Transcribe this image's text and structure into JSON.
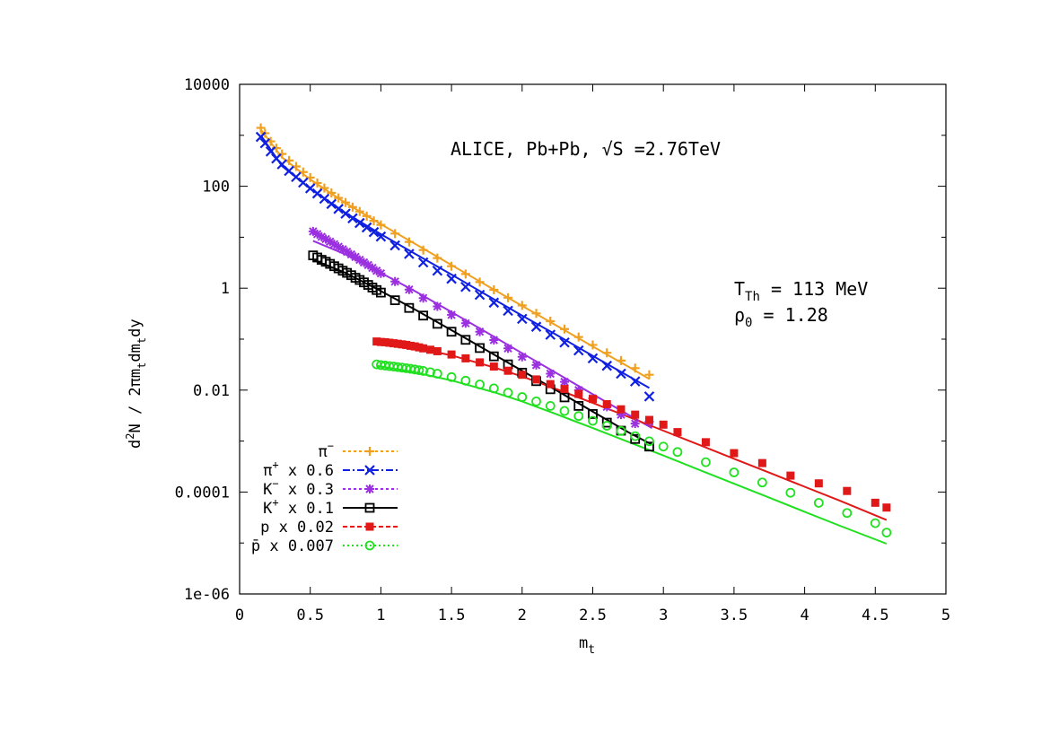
{
  "chart_data": {
    "type": "scatter",
    "title": "ALICE, Pb+Pb, √S =2.76TeV",
    "xlabel": "m",
    "xlabel_sub": "t",
    "ylabel_parts": {
      "a": "d",
      "b": "2",
      "c": "N  /  2πm",
      "d": "t",
      "e": "dm",
      "f": "t",
      "g": "dy"
    },
    "xlim": [
      0,
      5
    ],
    "ylim": [
      1e-06,
      10000
    ],
    "yscale": "log",
    "grid": false,
    "legend_position": "bottom-left",
    "xticks": [
      "0",
      "0.5",
      "1",
      "1.5",
      "2",
      "2.5",
      "3",
      "3.5",
      "4",
      "4.5",
      "5"
    ],
    "yticks": [
      "1e-06",
      "0.0001",
      "0.01",
      "1",
      "100",
      "10000"
    ],
    "params": {
      "t_main": "T",
      "t_sub": "Th",
      "t_value": " = 113 MeV",
      "rho_main": "ρ",
      "rho_sub": "0",
      "rho_value": "   = 1.28"
    },
    "series": [
      {
        "name": "π",
        "name_sup": "−",
        "name_suffix": "",
        "color": "#f0a020",
        "marker": "plus",
        "dash": "3,3",
        "x": [
          0.15,
          0.18,
          0.22,
          0.26,
          0.3,
          0.35,
          0.4,
          0.45,
          0.5,
          0.55,
          0.6,
          0.65,
          0.7,
          0.75,
          0.8,
          0.85,
          0.9,
          0.95,
          1.0,
          1.1,
          1.2,
          1.3,
          1.4,
          1.5,
          1.6,
          1.7,
          1.8,
          1.9,
          2.0,
          2.1,
          2.2,
          2.3,
          2.4,
          2.5,
          2.6,
          2.7,
          2.8,
          2.9
        ],
        "y": [
          1400,
          1100,
          760,
          560,
          430,
          320,
          245,
          190,
          148,
          116,
          92,
          74,
          59,
          48,
          39,
          32,
          26,
          21,
          17.5,
          11.8,
          8.1,
          5.6,
          3.9,
          2.7,
          1.9,
          1.32,
          0.93,
          0.65,
          0.46,
          0.32,
          0.225,
          0.158,
          0.11,
          0.077,
          0.054,
          0.038,
          0.027,
          0.02
        ],
        "model": [
          [
            0.15,
            1300
          ],
          [
            0.3,
            370
          ],
          [
            0.5,
            136
          ],
          [
            0.75,
            47
          ],
          [
            1.0,
            18
          ],
          [
            1.25,
            7.2
          ],
          [
            1.5,
            2.85
          ],
          [
            1.75,
            1.13
          ],
          [
            2.0,
            0.45
          ],
          [
            2.25,
            0.18
          ],
          [
            2.5,
            0.072
          ],
          [
            2.75,
            0.029
          ],
          [
            2.9,
            0.0165
          ]
        ]
      },
      {
        "name": "π",
        "name_sup": "+",
        "name_suffix": " x 0.6",
        "color": "#1020e0",
        "marker": "cross",
        "dash": "8,3,2,3",
        "x": [
          0.15,
          0.18,
          0.22,
          0.26,
          0.3,
          0.35,
          0.4,
          0.45,
          0.5,
          0.55,
          0.6,
          0.65,
          0.7,
          0.75,
          0.8,
          0.85,
          0.9,
          0.95,
          1.0,
          1.1,
          1.2,
          1.3,
          1.4,
          1.5,
          1.6,
          1.7,
          1.8,
          1.9,
          2.0,
          2.1,
          2.2,
          2.3,
          2.4,
          2.5,
          2.6,
          2.7,
          2.8,
          2.9
        ],
        "y": [
          930,
          700,
          480,
          350,
          270,
          200,
          152,
          118,
          91,
          72,
          57,
          45,
          36,
          29,
          23.5,
          19,
          15.5,
          12.6,
          10.3,
          6.9,
          4.7,
          3.2,
          2.2,
          1.53,
          1.06,
          0.74,
          0.52,
          0.36,
          0.25,
          0.175,
          0.122,
          0.086,
          0.06,
          0.042,
          0.03,
          0.021,
          0.0148,
          0.0075
        ],
        "model": [
          [
            0.15,
            1000
          ],
          [
            0.3,
            250
          ],
          [
            0.5,
            90
          ],
          [
            0.75,
            30
          ],
          [
            1.0,
            11.5
          ],
          [
            1.25,
            4.6
          ],
          [
            1.5,
            1.85
          ],
          [
            1.75,
            0.73
          ],
          [
            2.0,
            0.29
          ],
          [
            2.25,
            0.118
          ],
          [
            2.5,
            0.047
          ],
          [
            2.75,
            0.019
          ],
          [
            2.9,
            0.011
          ]
        ]
      },
      {
        "name": "K",
        "name_sup": "−",
        "name_suffix": " x 0.3",
        "color": "#9a30e0",
        "marker": "star",
        "dash": "3,3",
        "x": [
          0.52,
          0.55,
          0.58,
          0.61,
          0.64,
          0.67,
          0.7,
          0.73,
          0.76,
          0.79,
          0.82,
          0.85,
          0.88,
          0.91,
          0.94,
          0.97,
          1.0,
          1.1,
          1.2,
          1.3,
          1.4,
          1.5,
          1.6,
          1.7,
          1.8,
          1.9,
          2.0,
          2.1,
          2.2,
          2.3,
          2.4,
          2.5,
          2.6,
          2.7,
          2.8,
          2.9
        ],
        "y": [
          13,
          11.5,
          10.2,
          9.2,
          8.2,
          7.3,
          6.5,
          5.8,
          5.2,
          4.6,
          4.1,
          3.6,
          3.2,
          2.85,
          2.5,
          2.2,
          1.95,
          1.35,
          0.94,
          0.64,
          0.44,
          0.3,
          0.205,
          0.14,
          0.096,
          0.066,
          0.045,
          0.031,
          0.021,
          0.0145,
          0.01,
          0.0069,
          0.0047,
          0.0033,
          0.0022,
          0.0024
        ],
        "model": [
          [
            0.52,
            8.5
          ],
          [
            0.75,
            4.6
          ],
          [
            1.0,
            2.0
          ],
          [
            1.25,
            0.85
          ],
          [
            1.5,
            0.34
          ],
          [
            1.75,
            0.135
          ],
          [
            2.0,
            0.053
          ],
          [
            2.25,
            0.021
          ],
          [
            2.5,
            0.0083
          ],
          [
            2.75,
            0.0033
          ],
          [
            2.92,
            0.0018
          ]
        ]
      },
      {
        "name": "K",
        "name_sup": "+",
        "name_suffix": " x 0.1",
        "color": "#000000",
        "marker": "square",
        "dash": "",
        "x": [
          0.52,
          0.55,
          0.58,
          0.61,
          0.64,
          0.67,
          0.7,
          0.73,
          0.76,
          0.79,
          0.82,
          0.85,
          0.88,
          0.91,
          0.94,
          0.97,
          1.0,
          1.1,
          1.2,
          1.3,
          1.4,
          1.5,
          1.6,
          1.7,
          1.8,
          1.9,
          2.0,
          2.1,
          2.2,
          2.3,
          2.4,
          2.5,
          2.6,
          2.7,
          2.8,
          2.9
        ],
        "y": [
          4.4,
          4.0,
          3.6,
          3.3,
          3.0,
          2.7,
          2.45,
          2.2,
          2.0,
          1.8,
          1.6,
          1.45,
          1.3,
          1.16,
          1.03,
          0.92,
          0.82,
          0.58,
          0.41,
          0.29,
          0.2,
          0.14,
          0.097,
          0.067,
          0.046,
          0.032,
          0.022,
          0.015,
          0.0104,
          0.0072,
          0.0049,
          0.0034,
          0.0023,
          0.0016,
          0.0011,
          0.00078
        ],
        "model": [
          [
            0.52,
            3.6
          ],
          [
            0.75,
            2.0
          ],
          [
            1.0,
            0.88
          ],
          [
            1.25,
            0.37
          ],
          [
            1.5,
            0.15
          ],
          [
            1.75,
            0.06
          ],
          [
            2.0,
            0.024
          ],
          [
            2.25,
            0.0096
          ],
          [
            2.5,
            0.0038
          ],
          [
            2.75,
            0.0015
          ],
          [
            2.92,
            0.00085
          ]
        ]
      },
      {
        "name": "p",
        "name_sup": "",
        "name_suffix": " x 0.02",
        "color": "#e01818",
        "marker": "filledsquare",
        "dash": "5,3",
        "x": [
          0.97,
          1.0,
          1.03,
          1.06,
          1.09,
          1.12,
          1.15,
          1.18,
          1.21,
          1.24,
          1.27,
          1.3,
          1.35,
          1.4,
          1.5,
          1.6,
          1.7,
          1.8,
          1.9,
          2.0,
          2.1,
          2.2,
          2.3,
          2.4,
          2.5,
          2.6,
          2.7,
          2.8,
          2.9,
          3.0,
          3.1,
          3.3,
          3.5,
          3.7,
          3.9,
          4.1,
          4.3,
          4.5,
          4.58
        ],
        "y": [
          0.09,
          0.088,
          0.087,
          0.085,
          0.083,
          0.081,
          0.079,
          0.077,
          0.074,
          0.072,
          0.069,
          0.066,
          0.062,
          0.058,
          0.05,
          0.042,
          0.035,
          0.029,
          0.024,
          0.02,
          0.0162,
          0.0131,
          0.0105,
          0.0084,
          0.0067,
          0.0053,
          0.0042,
          0.0033,
          0.0026,
          0.0021,
          0.0015,
          0.00095,
          0.00058,
          0.00037,
          0.00021,
          0.000148,
          0.000105,
          6.16e-05,
          4.96e-05
        ],
        "model": [
          [
            0.97,
            0.092
          ],
          [
            1.2,
            0.072
          ],
          [
            1.5,
            0.048
          ],
          [
            1.8,
            0.028
          ],
          [
            2.0,
            0.0185
          ],
          [
            2.25,
            0.0103
          ],
          [
            2.5,
            0.0056
          ],
          [
            2.75,
            0.003
          ],
          [
            3.0,
            0.0016
          ],
          [
            3.25,
            0.00085
          ],
          [
            3.5,
            0.00045
          ],
          [
            3.75,
            0.00024
          ],
          [
            4.0,
            0.000127
          ],
          [
            4.25,
            6.75e-05
          ],
          [
            4.58,
            2.82e-05
          ]
        ]
      },
      {
        "name": "p̄",
        "name_sup": "",
        "name_suffix": " x 0.007",
        "color": "#20e020",
        "marker": "circle",
        "dash": "2,3",
        "x": [
          0.97,
          1.0,
          1.03,
          1.06,
          1.09,
          1.12,
          1.15,
          1.18,
          1.21,
          1.24,
          1.27,
          1.3,
          1.35,
          1.4,
          1.5,
          1.6,
          1.7,
          1.8,
          1.9,
          2.0,
          2.1,
          2.2,
          2.3,
          2.4,
          2.5,
          2.6,
          2.7,
          2.8,
          2.9,
          3.0,
          3.1,
          3.3,
          3.5,
          3.7,
          3.9,
          4.1,
          4.3,
          4.5,
          4.58
        ],
        "y": [
          0.032,
          0.031,
          0.0303,
          0.0296,
          0.029,
          0.0283,
          0.0276,
          0.0269,
          0.0262,
          0.0254,
          0.0246,
          0.0238,
          0.0224,
          0.021,
          0.018,
          0.0153,
          0.0129,
          0.0108,
          0.0089,
          0.0073,
          0.006,
          0.0049,
          0.0039,
          0.0031,
          0.0025,
          0.002,
          0.00158,
          0.00125,
          0.00099,
          0.00078,
          0.00061,
          0.000385,
          0.000243,
          0.000154,
          9.68e-05,
          6.13e-05,
          3.88e-05,
          2.45e-05,
          1.6e-05
        ],
        "model": [
          [
            0.97,
            0.03
          ],
          [
            1.2,
            0.0235
          ],
          [
            1.5,
            0.0155
          ],
          [
            1.8,
            0.0091
          ],
          [
            2.0,
            0.006
          ],
          [
            2.25,
            0.0033
          ],
          [
            2.5,
            0.0018
          ],
          [
            2.75,
            0.00097
          ],
          [
            3.0,
            0.00052
          ],
          [
            3.25,
            0.000275
          ],
          [
            3.5,
            0.000146
          ],
          [
            3.75,
            7.75e-05
          ],
          [
            4.0,
            4.1e-05
          ],
          [
            4.25,
            2.18e-05
          ],
          [
            4.58,
            9.7e-06
          ]
        ]
      }
    ]
  }
}
